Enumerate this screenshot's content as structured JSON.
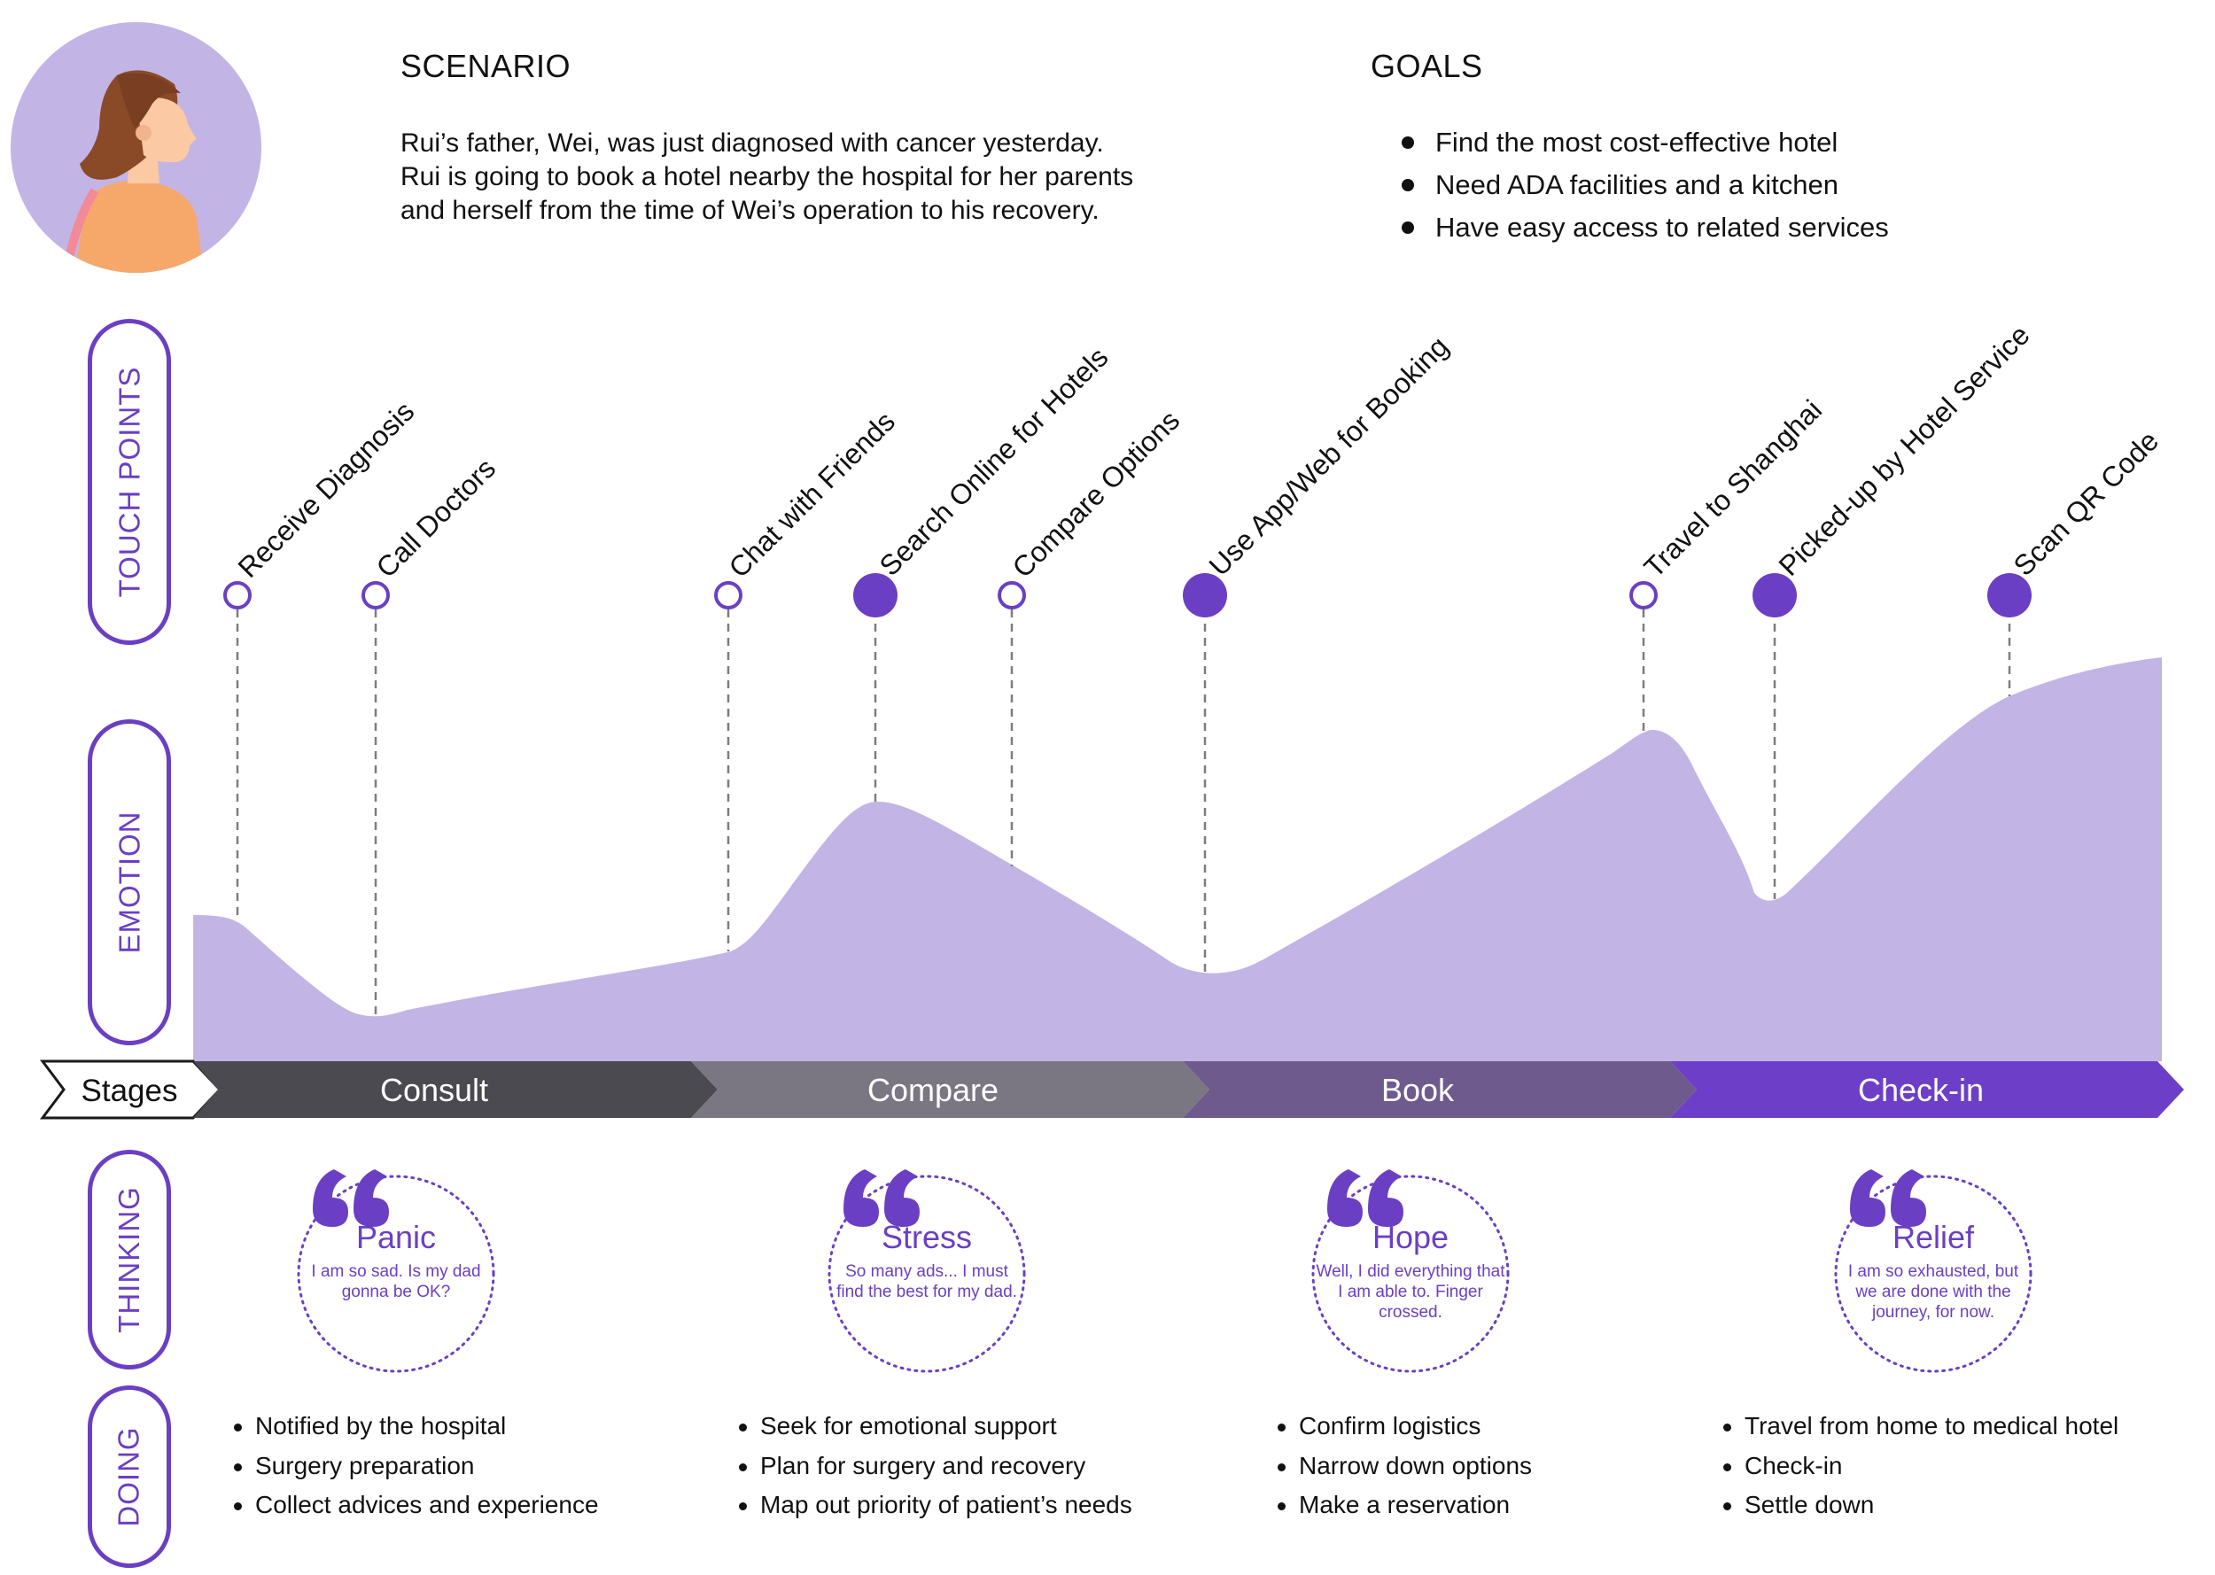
{
  "scenario": {
    "heading": "SCENARIO",
    "lines": [
      "Rui’s father, Wei, was just diagnosed with  cancer yesterday.",
      "Rui is going to book a hotel nearby the hospital for her parents",
      "and herself from the time of Wei’s operation to his recovery."
    ]
  },
  "goals": {
    "heading": "GOALS",
    "items": [
      "Find the most cost-effective hotel",
      "Need ADA facilities and a kitchen",
      "Have easy access to related services"
    ]
  },
  "side_labels": {
    "touch_points": "TOUCH POINTS",
    "emotion": "EMOTION",
    "thinking": "THINKING",
    "doing": "DOING"
  },
  "touch_points": [
    {
      "label": "Receive Diagnosis",
      "filled": false
    },
    {
      "label": "Call Doctors",
      "filled": false
    },
    {
      "label": "Chat with Friends",
      "filled": false
    },
    {
      "label": "Search Online for Hotels",
      "filled": true
    },
    {
      "label": "Compare Options",
      "filled": false
    },
    {
      "label": "Use App/Web for Booking",
      "filled": true
    },
    {
      "label": "Travel to Shanghai",
      "filled": false
    },
    {
      "label": "Picked-up by Hotel Service",
      "filled": true
    },
    {
      "label": "Scan QR Code",
      "filled": true
    }
  ],
  "stages": {
    "label": "Stages",
    "items": [
      "Consult",
      "Compare",
      "Book",
      "Check-in"
    ]
  },
  "thinking": [
    {
      "title": "Panic",
      "text": "I am so sad. Is my dad gonna be OK?"
    },
    {
      "title": "Stress",
      "text": "So many ads... I must find the best for my dad."
    },
    {
      "title": "Hope",
      "text": "Well, I did everything that I am able to. Finger crossed."
    },
    {
      "title": "Relief",
      "text": "I am so exhausted, but we are done with the journey, for now."
    }
  ],
  "doing": [
    [
      "Notified by the hospital",
      "Surgery preparation",
      "Collect advices and experience"
    ],
    [
      "Seek for emotional support",
      "Plan for surgery and recovery",
      "Map out priority of patient’s needs"
    ],
    [
      "Confirm logistics",
      "Narrow down options",
      "Make a reservation"
    ],
    [
      "Travel from home to medical hotel",
      "Check-in",
      "Settle down"
    ]
  ],
  "colors": {
    "accent": "#6b3fc3",
    "emotion_fill": "#c3b4e6",
    "stage_consult": "#4b4a51",
    "stage_compare": "#7a7682",
    "stage_book": "#6f5a8e",
    "stage_checkin": "#6d3fc8"
  }
}
